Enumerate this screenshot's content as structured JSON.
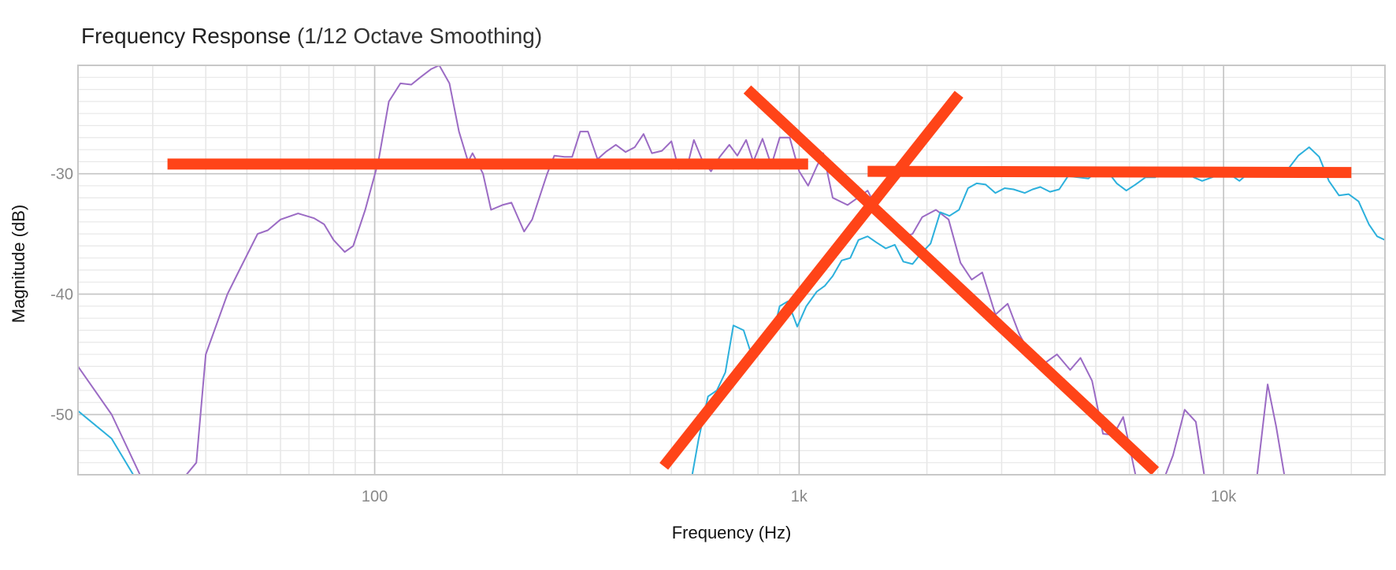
{
  "chart_data": {
    "type": "line",
    "title": "Frequency Response",
    "subtitle": "(1/12 Octave Smoothing)",
    "xlabel": "Frequency (Hz)",
    "ylabel": "Magnitude (dB)",
    "x_scale": "log",
    "xlim": [
      20,
      24000
    ],
    "ylim": [
      -55,
      -21
    ],
    "x_ticks": [
      {
        "value": 100,
        "label": "100"
      },
      {
        "value": 1000,
        "label": "1k"
      },
      {
        "value": 10000,
        "label": "10k"
      }
    ],
    "y_ticks": [
      {
        "value": -30,
        "label": "-30"
      },
      {
        "value": -40,
        "label": "-40"
      },
      {
        "value": -50,
        "label": "-50"
      }
    ],
    "grid": true,
    "series": [
      {
        "color": "#9b6bc4",
        "points": [
          [
            20,
            -46
          ],
          [
            24,
            -50
          ],
          [
            28,
            -55
          ],
          [
            36,
            -55
          ],
          [
            38,
            -54
          ],
          [
            40,
            -45
          ],
          [
            45,
            -40
          ],
          [
            48,
            -38
          ],
          [
            53,
            -35
          ],
          [
            56,
            -34.7
          ],
          [
            60,
            -33.8
          ],
          [
            66,
            -33.3
          ],
          [
            72,
            -33.7
          ],
          [
            76,
            -34.2
          ],
          [
            80,
            -35.5
          ],
          [
            85,
            -36.5
          ],
          [
            89,
            -36
          ],
          [
            95,
            -33
          ],
          [
            102,
            -29
          ],
          [
            108,
            -24
          ],
          [
            115,
            -22.5
          ],
          [
            122,
            -22.6
          ],
          [
            128,
            -22
          ],
          [
            136,
            -21.3
          ],
          [
            142,
            -21
          ],
          [
            150,
            -22.5
          ],
          [
            158,
            -26.5
          ],
          [
            166,
            -29
          ],
          [
            170,
            -28.3
          ],
          [
            180,
            -30
          ],
          [
            188,
            -33
          ],
          [
            200,
            -32.6
          ],
          [
            210,
            -32.4
          ],
          [
            225,
            -34.8
          ],
          [
            235,
            -33.8
          ],
          [
            255,
            -30
          ],
          [
            265,
            -28.5
          ],
          [
            280,
            -28.6
          ],
          [
            292,
            -28.6
          ],
          [
            305,
            -26.5
          ],
          [
            318,
            -26.5
          ],
          [
            335,
            -28.8
          ],
          [
            350,
            -28.2
          ],
          [
            370,
            -27.6
          ],
          [
            390,
            -28.2
          ],
          [
            410,
            -27.8
          ],
          [
            430,
            -26.7
          ],
          [
            450,
            -28.3
          ],
          [
            475,
            -28.1
          ],
          [
            500,
            -27.3
          ],
          [
            520,
            -29.6
          ],
          [
            545,
            -29.4
          ],
          [
            565,
            -27.2
          ],
          [
            590,
            -28.8
          ],
          [
            620,
            -29.8
          ],
          [
            650,
            -28.6
          ],
          [
            685,
            -27.6
          ],
          [
            715,
            -28.5
          ],
          [
            750,
            -27.2
          ],
          [
            780,
            -29
          ],
          [
            820,
            -27.1
          ],
          [
            860,
            -29.3
          ],
          [
            900,
            -27
          ],
          [
            950,
            -27
          ],
          [
            1000,
            -29.8
          ],
          [
            1050,
            -31
          ],
          [
            1100,
            -29.4
          ],
          [
            1140,
            -28.3
          ],
          [
            1200,
            -32
          ],
          [
            1300,
            -32.6
          ],
          [
            1400,
            -31.8
          ],
          [
            1450,
            -31.4
          ],
          [
            1550,
            -33.4
          ],
          [
            1650,
            -34.5
          ],
          [
            1750,
            -35.3
          ],
          [
            1850,
            -35
          ],
          [
            1950,
            -33.6
          ],
          [
            2100,
            -33
          ],
          [
            2250,
            -33.8
          ],
          [
            2400,
            -37.4
          ],
          [
            2550,
            -38.8
          ],
          [
            2700,
            -38.2
          ],
          [
            2900,
            -41.7
          ],
          [
            3100,
            -40.8
          ],
          [
            3300,
            -43.3
          ],
          [
            3550,
            -45.4
          ],
          [
            3800,
            -45.7
          ],
          [
            4050,
            -45
          ],
          [
            4350,
            -46.3
          ],
          [
            4600,
            -45.3
          ],
          [
            4900,
            -47.2
          ],
          [
            5200,
            -51.6
          ],
          [
            5500,
            -51.7
          ],
          [
            5800,
            -50.2
          ],
          [
            6200,
            -55
          ],
          [
            7300,
            -55
          ],
          [
            7600,
            -53.4
          ],
          [
            8100,
            -49.6
          ],
          [
            8600,
            -50.6
          ],
          [
            9000,
            -55
          ],
          [
            12000,
            -55
          ],
          [
            12700,
            -47.5
          ],
          [
            13300,
            -51
          ],
          [
            13900,
            -55
          ]
        ]
      },
      {
        "color": "#2cb0dc",
        "points": [
          [
            20,
            -49.7
          ],
          [
            24,
            -52
          ],
          [
            27,
            -55
          ],
          [
            40,
            -55
          ],
          [
            41.5,
            -55
          ],
          [
            43,
            -55
          ],
          [
            530,
            -55
          ],
          [
            560,
            -55
          ],
          [
            580,
            -52
          ],
          [
            610,
            -48.5
          ],
          [
            640,
            -48
          ],
          [
            670,
            -46.5
          ],
          [
            700,
            -42.6
          ],
          [
            740,
            -43
          ],
          [
            780,
            -45.5
          ],
          [
            820,
            -44
          ],
          [
            865,
            -43.5
          ],
          [
            900,
            -41
          ],
          [
            940,
            -40.6
          ],
          [
            990,
            -42.7
          ],
          [
            1040,
            -41
          ],
          [
            1100,
            -39.8
          ],
          [
            1150,
            -39.3
          ],
          [
            1200,
            -38.5
          ],
          [
            1260,
            -37.2
          ],
          [
            1320,
            -37
          ],
          [
            1380,
            -35.5
          ],
          [
            1450,
            -35.2
          ],
          [
            1520,
            -35.7
          ],
          [
            1600,
            -36.2
          ],
          [
            1680,
            -35.9
          ],
          [
            1760,
            -37.3
          ],
          [
            1850,
            -37.5
          ],
          [
            1940,
            -36.6
          ],
          [
            2040,
            -35.8
          ],
          [
            2150,
            -33.2
          ],
          [
            2260,
            -33.5
          ],
          [
            2380,
            -33
          ],
          [
            2500,
            -31.2
          ],
          [
            2620,
            -30.8
          ],
          [
            2750,
            -30.9
          ],
          [
            2900,
            -31.6
          ],
          [
            3050,
            -31.2
          ],
          [
            3200,
            -31.3
          ],
          [
            3400,
            -31.6
          ],
          [
            3550,
            -31.3
          ],
          [
            3700,
            -31.1
          ],
          [
            3900,
            -31.5
          ],
          [
            4100,
            -31.3
          ],
          [
            4300,
            -30.2
          ],
          [
            4550,
            -30.3
          ],
          [
            4800,
            -30.4
          ],
          [
            5050,
            -29.8
          ],
          [
            5300,
            -29.7
          ],
          [
            5600,
            -30.8
          ],
          [
            5900,
            -31.4
          ],
          [
            6200,
            -30.9
          ],
          [
            6550,
            -30.3
          ],
          [
            6900,
            -30.3
          ],
          [
            7300,
            -29.8
          ],
          [
            7700,
            -29.9
          ],
          [
            8100,
            -29.7
          ],
          [
            8500,
            -30.3
          ],
          [
            8900,
            -30.6
          ],
          [
            9400,
            -30.3
          ],
          [
            9900,
            -29.9
          ],
          [
            10400,
            -30.1
          ],
          [
            10900,
            -30.6
          ],
          [
            11400,
            -30
          ],
          [
            12000,
            -29.5
          ],
          [
            12700,
            -29.7
          ],
          [
            13400,
            -29.9
          ],
          [
            14200,
            -29.6
          ],
          [
            15000,
            -28.5
          ],
          [
            15900,
            -27.8
          ],
          [
            16800,
            -28.6
          ],
          [
            17700,
            -30.6
          ],
          [
            18700,
            -31.8
          ],
          [
            19700,
            -31.7
          ],
          [
            20800,
            -32.3
          ],
          [
            22000,
            -34.2
          ],
          [
            23000,
            -35.2
          ],
          [
            24000,
            -35.5
          ]
        ]
      }
    ],
    "overlay_lines": {
      "color": "#ff4418",
      "lines": [
        [
          [
            32.5,
            -29.2
          ],
          [
            1050,
            -29.2
          ]
        ],
        [
          [
            1450,
            -29.8
          ],
          [
            20000,
            -29.9
          ]
        ],
        [
          [
            755,
            -23
          ],
          [
            6900,
            -54.7
          ]
        ],
        [
          [
            480,
            -54.3
          ],
          [
            2380,
            -23.4
          ]
        ]
      ]
    }
  }
}
